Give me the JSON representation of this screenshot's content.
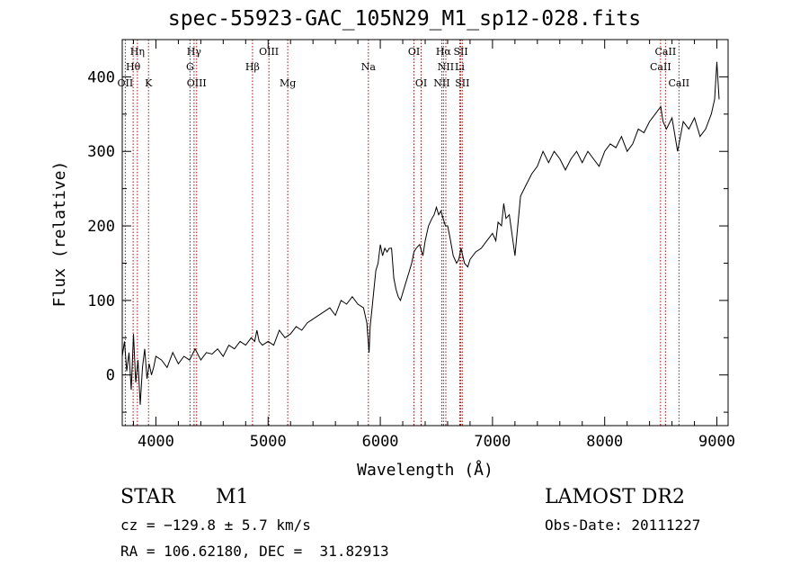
{
  "title": "spec-55923-GAC_105N29_M1_sp12-028.fits",
  "colors": {
    "line": "#000000",
    "marker": "#a01010",
    "axis": "#000000"
  },
  "info": {
    "class": "STAR",
    "subclass": "M1",
    "survey": "LAMOST DR2",
    "cz": "cz = −129.8 ± 5.7 km/s",
    "obs_date": "Obs-Date: 20111227",
    "radec": "RA = 106.62180, DEC =  31.82913"
  },
  "chart_data": {
    "type": "line",
    "title": "spec-55923-GAC_105N29_M1_sp12-028.fits",
    "xlabel": "Wavelength (Å)",
    "ylabel": "Flux (relative)",
    "xlim": [
      3700,
      9100
    ],
    "ylim": [
      -68,
      450
    ],
    "xticks": [
      4000,
      5000,
      6000,
      7000,
      8000,
      9000
    ],
    "yticks": [
      0,
      100,
      200,
      300,
      400
    ],
    "grid": false,
    "series": [
      {
        "x": [
          3700,
          3720,
          3740,
          3760,
          3780,
          3800,
          3820,
          3840,
          3860,
          3880,
          3900,
          3920,
          3940,
          3960,
          3980,
          4000,
          4050,
          4100,
          4150,
          4200,
          4250,
          4300,
          4350,
          4400,
          4450,
          4500,
          4550,
          4600,
          4650,
          4700,
          4750,
          4800,
          4850,
          4880,
          4900,
          4920,
          4950,
          5000,
          5050,
          5100,
          5150,
          5200,
          5250,
          5300,
          5350,
          5400,
          5450,
          5500,
          5550,
          5600,
          5650,
          5700,
          5750,
          5800,
          5850,
          5880,
          5900,
          5910,
          5920,
          5940,
          5960,
          5980,
          6000,
          6020,
          6040,
          6060,
          6080,
          6100,
          6120,
          6140,
          6160,
          6180,
          6200,
          6220,
          6250,
          6280,
          6300,
          6320,
          6350,
          6380,
          6400,
          6430,
          6460,
          6480,
          6500,
          6520,
          6540,
          6560,
          6580,
          6600,
          6620,
          6650,
          6680,
          6700,
          6720,
          6750,
          6780,
          6800,
          6850,
          6900,
          6950,
          7000,
          7030,
          7050,
          7080,
          7100,
          7120,
          7150,
          7200,
          7250,
          7300,
          7350,
          7400,
          7450,
          7500,
          7550,
          7600,
          7650,
          7700,
          7750,
          7800,
          7850,
          7900,
          7950,
          8000,
          8050,
          8100,
          8150,
          8200,
          8250,
          8300,
          8350,
          8400,
          8450,
          8500,
          8520,
          8550,
          8600,
          8650,
          8700,
          8750,
          8800,
          8850,
          8900,
          8950,
          8980,
          9000,
          9020
        ],
        "y": [
          25,
          45,
          5,
          30,
          -20,
          55,
          -10,
          20,
          -40,
          10,
          35,
          -5,
          15,
          0,
          10,
          25,
          20,
          10,
          30,
          15,
          25,
          20,
          35,
          20,
          30,
          28,
          35,
          25,
          40,
          35,
          45,
          40,
          50,
          45,
          60,
          45,
          40,
          45,
          40,
          60,
          50,
          55,
          65,
          60,
          70,
          75,
          80,
          85,
          90,
          80,
          100,
          95,
          105,
          95,
          90,
          70,
          30,
          65,
          80,
          110,
          140,
          150,
          175,
          160,
          170,
          165,
          170,
          170,
          130,
          115,
          105,
          100,
          110,
          120,
          135,
          150,
          165,
          170,
          175,
          160,
          180,
          200,
          210,
          215,
          225,
          215,
          220,
          210,
          200,
          200,
          185,
          160,
          150,
          155,
          170,
          150,
          145,
          155,
          165,
          170,
          180,
          190,
          180,
          205,
          200,
          230,
          210,
          215,
          160,
          240,
          255,
          270,
          280,
          300,
          285,
          300,
          290,
          275,
          290,
          300,
          285,
          300,
          290,
          280,
          300,
          310,
          305,
          320,
          300,
          310,
          330,
          325,
          340,
          350,
          360,
          340,
          330,
          345,
          300,
          340,
          330,
          345,
          320,
          330,
          350,
          370,
          420,
          370
        ]
      }
    ],
    "lines": [
      {
        "name": "Hη",
        "x": 3835,
        "row": 0
      },
      {
        "name": "Hθ",
        "x": 3797,
        "row": 1
      },
      {
        "name": "OII",
        "x": 3727,
        "row": 2
      },
      {
        "name": "K",
        "x": 3934,
        "row": 2
      },
      {
        "name": "Hγ",
        "x": 4340,
        "row": 0
      },
      {
        "name": "G",
        "x": 4304,
        "row": 1
      },
      {
        "name": "OIII",
        "x": 4363,
        "row": 2
      },
      {
        "name": "OIII",
        "x": 5007,
        "row": 0
      },
      {
        "name": "Hβ",
        "x": 4861,
        "row": 1
      },
      {
        "name": "Mg",
        "x": 5175,
        "row": 2
      },
      {
        "name": "Na",
        "x": 5894,
        "row": 1
      },
      {
        "name": "OI",
        "x": 6300,
        "row": 0
      },
      {
        "name": "OI",
        "x": 6364,
        "row": 2
      },
      {
        "name": "Hα",
        "x": 6563,
        "row": 0
      },
      {
        "name": "SII",
        "x": 6717,
        "row": 0
      },
      {
        "name": "NII",
        "x": 6584,
        "row": 1
      },
      {
        "name": "Li",
        "x": 6708,
        "row": 1
      },
      {
        "name": "NII",
        "x": 6548,
        "row": 2
      },
      {
        "name": "SII",
        "x": 6731,
        "row": 2
      },
      {
        "name": "CaII",
        "x": 8542,
        "row": 0
      },
      {
        "name": "CaII",
        "x": 8498,
        "row": 1
      },
      {
        "name": "CaII",
        "x": 8662,
        "row": 2
      }
    ]
  }
}
